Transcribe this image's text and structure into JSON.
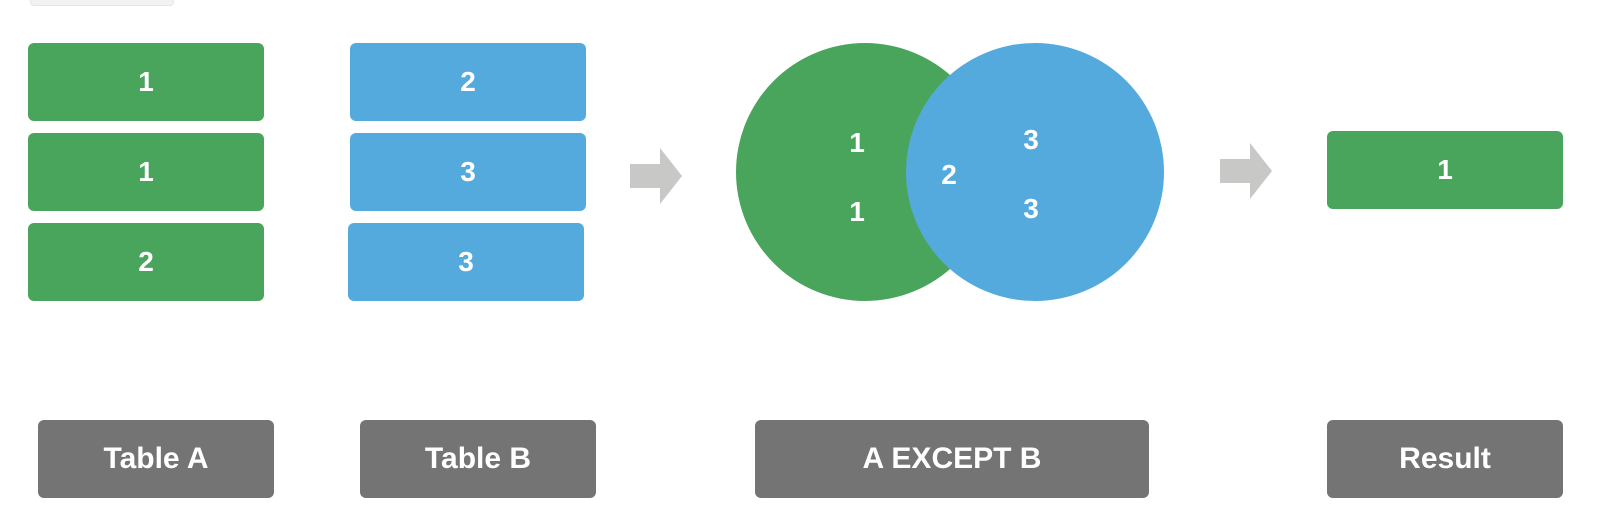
{
  "table_a": {
    "label": "Table A",
    "rows": [
      "1",
      "1",
      "2"
    ],
    "color": "#4aa55c"
  },
  "table_b": {
    "label": "Table B",
    "rows": [
      "2",
      "3",
      "3"
    ],
    "color": "#54aadd"
  },
  "operation": {
    "label": "A EXCEPT  B",
    "a_only": [
      "1",
      "1"
    ],
    "intersection": [
      "2"
    ],
    "b_only": [
      "3",
      "3"
    ]
  },
  "result": {
    "label": "Result",
    "rows": [
      "1"
    ]
  },
  "colors": {
    "green": "#4aa55c",
    "blue": "#54aadd",
    "label_bg": "#747474",
    "arrow": "#c8c8c6"
  },
  "icons": {
    "arrow": "right-arrow-icon"
  }
}
